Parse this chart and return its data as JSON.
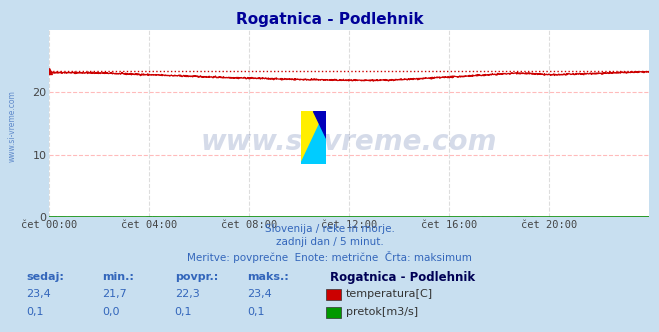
{
  "title": "Rogatnica - Podlehnik",
  "title_color": "#000099",
  "bg_color": "#c8dff0",
  "plot_bg_color": "#ffffff",
  "grid_color_h": "#ffbbbb",
  "grid_color_v": "#dddddd",
  "xlabel_ticks": [
    "čet 00:00",
    "čet 04:00",
    "čet 08:00",
    "čet 12:00",
    "čet 16:00",
    "čet 20:00"
  ],
  "tick_positions": [
    0,
    288,
    576,
    864,
    1152,
    1440
  ],
  "total_points": 1728,
  "ylim": [
    0,
    30
  ],
  "yticks": [
    0,
    10,
    20
  ],
  "temp_max": 23.4,
  "temp_color": "#cc0000",
  "flow_color": "#008800",
  "watermark_text": "www.si-vreme.com",
  "watermark_color": "#1a3a8a",
  "watermark_alpha": 0.18,
  "subtitle_line1": "Slovenija / reke in morje.",
  "subtitle_line2": "zadnji dan / 5 minut.",
  "subtitle_line3": "Meritve: povprečne  Enote: metrične  Črta: maksimum",
  "subtitle_color": "#3366bb",
  "legend_title": "Rogatnica - Podlehnik",
  "legend_color_title": "#000055",
  "legend_items": [
    {
      "label": "temperatura[C]",
      "color": "#cc0000"
    },
    {
      "label": "pretok[m3/s]",
      "color": "#009900"
    }
  ],
  "table_headers": [
    "sedaj:",
    "min.:",
    "povpr.:",
    "maks.:"
  ],
  "table_values_temp": [
    "23,4",
    "21,7",
    "22,3",
    "23,4"
  ],
  "table_values_flow": [
    "0,1",
    "0,0",
    "0,1",
    "0,1"
  ],
  "table_color": "#3366bb",
  "side_text": "www.si-vreme.com",
  "side_color": "#3366bb",
  "logo_yellow": "#ffee00",
  "logo_cyan": "#00ccff",
  "logo_blue": "#0000bb"
}
